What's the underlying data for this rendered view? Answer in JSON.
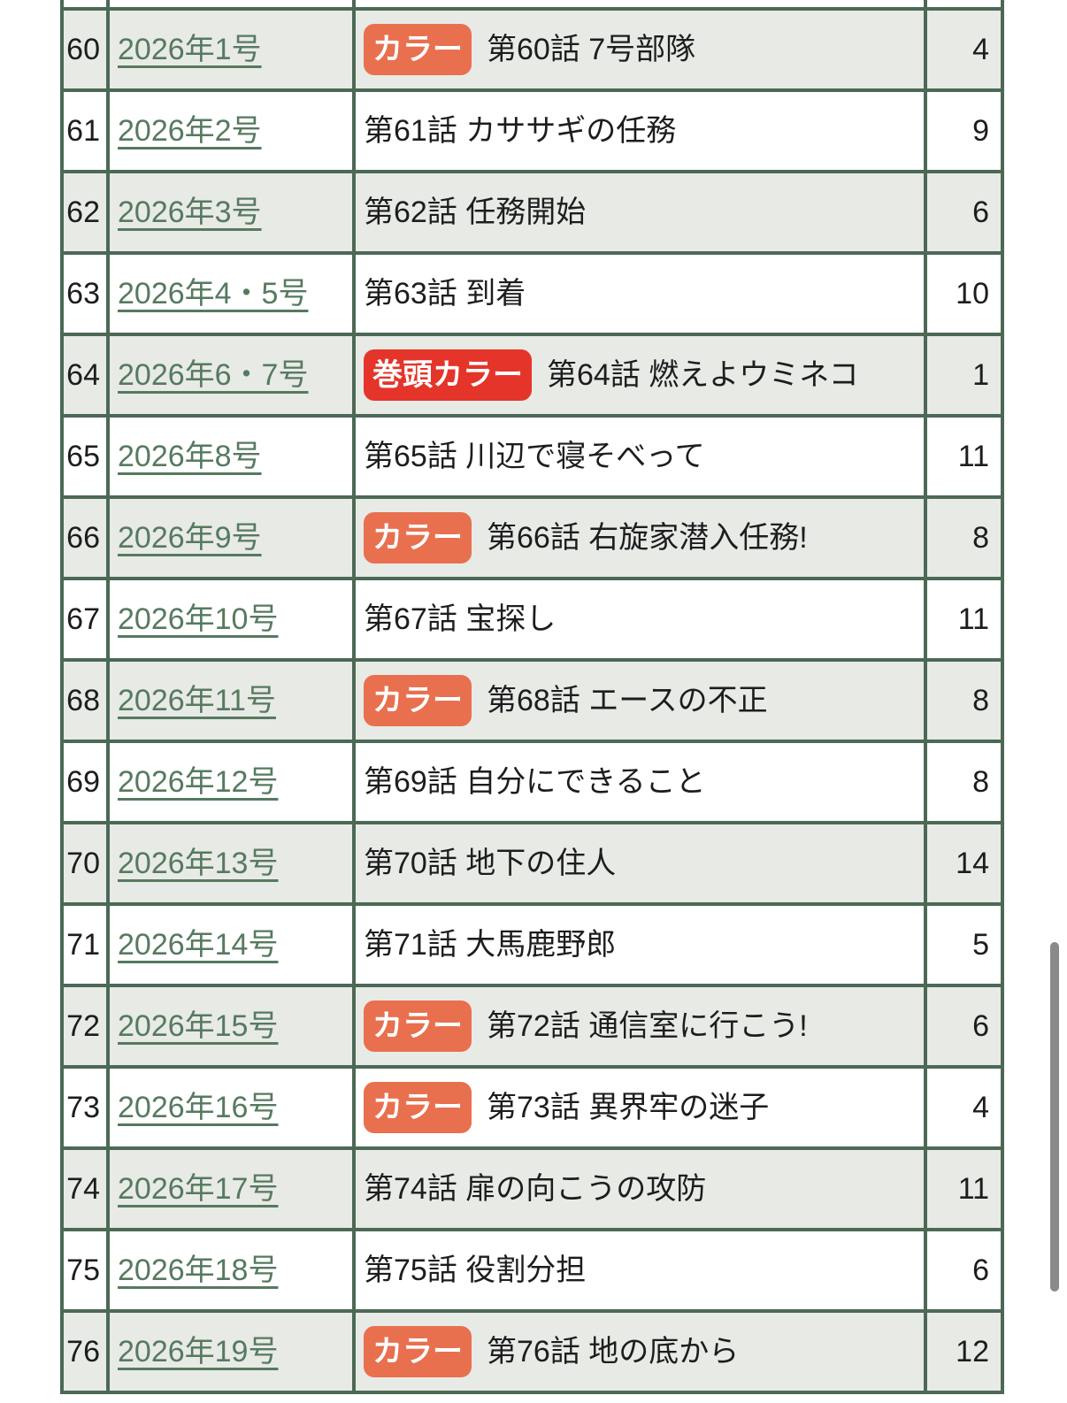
{
  "colors": {
    "border_green": "#4c6956",
    "row_gray": "#e8eae6",
    "row_white": "#ffffff",
    "link_green": "#567a5f",
    "badge_color": "#e8704f",
    "badge_lead_color": "#e5342a",
    "text": "#1d1d1f",
    "scrollbar": "#8a8a8a"
  },
  "table": {
    "columns": [
      "chapter_number",
      "issue",
      "title",
      "page"
    ],
    "badge_labels": {
      "color": "カラー",
      "lead": "巻頭カラー"
    },
    "rows": [
      {
        "no": "60",
        "issue": "2026年1号",
        "badge": "カラー",
        "badge_style": "color",
        "title": "第60話 7号部隊",
        "page": "4"
      },
      {
        "no": "61",
        "issue": "2026年2号",
        "badge": null,
        "badge_style": null,
        "title": "第61話 カササギの任務",
        "page": "9"
      },
      {
        "no": "62",
        "issue": "2026年3号",
        "badge": null,
        "badge_style": null,
        "title": "第62話 任務開始",
        "page": "6"
      },
      {
        "no": "63",
        "issue": "2026年4・5号",
        "badge": null,
        "badge_style": null,
        "title": "第63話 到着",
        "page": "10"
      },
      {
        "no": "64",
        "issue": "2026年6・7号",
        "badge": "巻頭カラー",
        "badge_style": "lead",
        "title": "第64話 燃えよウミネコ",
        "page": "1"
      },
      {
        "no": "65",
        "issue": "2026年8号",
        "badge": null,
        "badge_style": null,
        "title": "第65話 川辺で寝そべって",
        "page": "11"
      },
      {
        "no": "66",
        "issue": "2026年9号",
        "badge": "カラー",
        "badge_style": "color",
        "title": "第66話 右旋家潜入任務!",
        "page": "8"
      },
      {
        "no": "67",
        "issue": "2026年10号",
        "badge": null,
        "badge_style": null,
        "title": "第67話 宝探し",
        "page": "11"
      },
      {
        "no": "68",
        "issue": "2026年11号",
        "badge": "カラー",
        "badge_style": "color",
        "title": "第68話 エースの不正",
        "page": "8"
      },
      {
        "no": "69",
        "issue": "2026年12号",
        "badge": null,
        "badge_style": null,
        "title": "第69話 自分にできること",
        "page": "8"
      },
      {
        "no": "70",
        "issue": "2026年13号",
        "badge": null,
        "badge_style": null,
        "title": "第70話 地下の住人",
        "page": "14"
      },
      {
        "no": "71",
        "issue": "2026年14号",
        "badge": null,
        "badge_style": null,
        "title": "第71話 大馬鹿野郎",
        "page": "5"
      },
      {
        "no": "72",
        "issue": "2026年15号",
        "badge": "カラー",
        "badge_style": "color",
        "title": "第72話 通信室に行こう!",
        "page": "6"
      },
      {
        "no": "73",
        "issue": "2026年16号",
        "badge": "カラー",
        "badge_style": "color",
        "title": "第73話 異界牢の迷子",
        "page": "4"
      },
      {
        "no": "74",
        "issue": "2026年17号",
        "badge": null,
        "badge_style": null,
        "title": "第74話 扉の向こうの攻防",
        "page": "11"
      },
      {
        "no": "75",
        "issue": "2026年18号",
        "badge": null,
        "badge_style": null,
        "title": "第75話 役割分担",
        "page": "6"
      },
      {
        "no": "76",
        "issue": "2026年19号",
        "badge": "カラー",
        "badge_style": "color",
        "title": "第76話 地の底から",
        "page": "12"
      }
    ]
  }
}
